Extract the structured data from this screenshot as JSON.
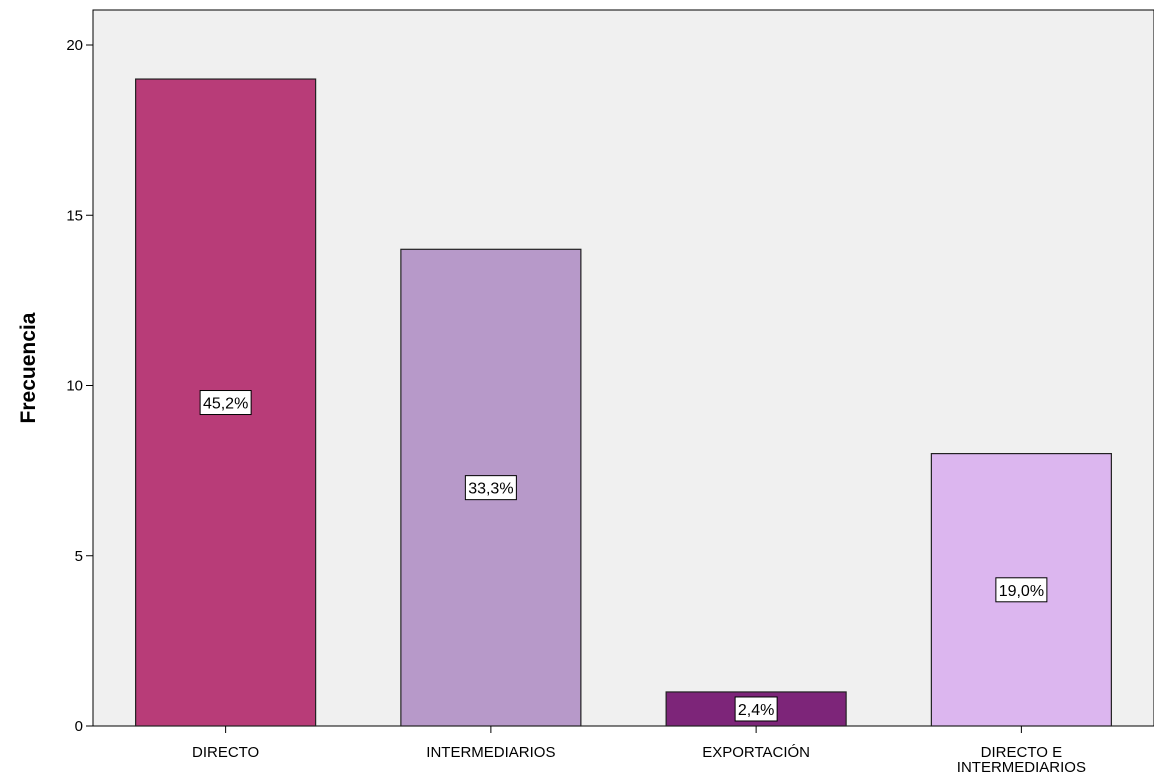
{
  "chart_data": {
    "type": "bar",
    "title": "",
    "xlabel": "",
    "ylabel": "Frecuencia",
    "ylim": [
      0,
      21
    ],
    "yticks": [
      0,
      5,
      10,
      15,
      20
    ],
    "grid": false,
    "categories": [
      [
        "DIRECTO"
      ],
      [
        "INTERMEDIARIOS"
      ],
      [
        "EXPORTACIÓN"
      ],
      [
        "DIRECTO E",
        "INTERMEDIARIOS"
      ]
    ],
    "values": [
      19,
      14,
      1,
      8
    ],
    "data_labels": [
      "45,2%",
      "33,3%",
      "2,4%",
      "19,0%"
    ],
    "colors": [
      "#b83c78",
      "#b799c9",
      "#7d2579",
      "#dcb6ef"
    ],
    "plot_background": "#f0f0f0"
  }
}
